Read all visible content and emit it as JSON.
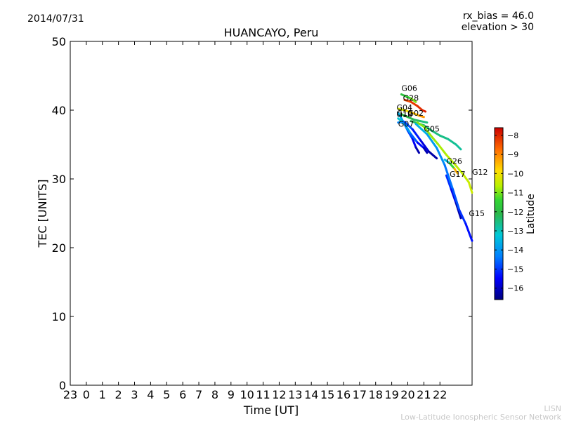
{
  "header": {
    "date": "2014/07/31",
    "rx_bias": "rx_bias = 46.0",
    "elevation": "elevation > 30"
  },
  "watermark": {
    "line1": "LISN",
    "line2": "Low-Latitude Ionospheric Sensor Network"
  },
  "chart_data": {
    "type": "scatter",
    "title": "HUANCAYO, Peru",
    "xlabel": "Time [UT]",
    "ylabel": "TEC [UNITS]",
    "xlim": [
      -1,
      24
    ],
    "ylim": [
      0,
      50
    ],
    "x_ticks": [
      {
        "v": -1,
        "label": "23"
      },
      {
        "v": 0,
        "label": "0"
      },
      {
        "v": 1,
        "label": "1"
      },
      {
        "v": 2,
        "label": "2"
      },
      {
        "v": 3,
        "label": "3"
      },
      {
        "v": 4,
        "label": "4"
      },
      {
        "v": 5,
        "label": "5"
      },
      {
        "v": 6,
        "label": "6"
      },
      {
        "v": 7,
        "label": "7"
      },
      {
        "v": 8,
        "label": "8"
      },
      {
        "v": 9,
        "label": "9"
      },
      {
        "v": 10,
        "label": "10"
      },
      {
        "v": 11,
        "label": "11"
      },
      {
        "v": 12,
        "label": "12"
      },
      {
        "v": 13,
        "label": "13"
      },
      {
        "v": 14,
        "label": "14"
      },
      {
        "v": 15,
        "label": "15"
      },
      {
        "v": 16,
        "label": "16"
      },
      {
        "v": 17,
        "label": "17"
      },
      {
        "v": 18,
        "label": "18"
      },
      {
        "v": 19,
        "label": "19"
      },
      {
        "v": 20,
        "label": "20"
      },
      {
        "v": 21,
        "label": "21"
      },
      {
        "v": 22,
        "label": "22"
      }
    ],
    "y_ticks": [
      0,
      10,
      20,
      30,
      40,
      50
    ],
    "colorbar": {
      "label": "Latitude",
      "range": [
        -16.6,
        -7.6
      ],
      "ticks": [
        -8,
        -9,
        -10,
        -11,
        -12,
        -13,
        -14,
        -15,
        -16
      ]
    },
    "series": [
      {
        "name": "G06",
        "lat_start": -12.0,
        "lat_end": -10.8,
        "points": [
          [
            19.6,
            42.3
          ],
          [
            19.9,
            42.0
          ],
          [
            20.2,
            41.7
          ],
          [
            20.5,
            41.2
          ]
        ]
      },
      {
        "name": "G28",
        "lat_start": -8.4,
        "lat_end": -7.9,
        "points": [
          [
            19.8,
            41.5
          ],
          [
            20.2,
            41.2
          ],
          [
            20.6,
            40.6
          ],
          [
            20.9,
            40.0
          ],
          [
            21.1,
            39.8
          ]
        ]
      },
      {
        "name": "G04",
        "lat_start": -10.5,
        "lat_end": -9.0,
        "points": [
          [
            19.4,
            40.2
          ],
          [
            19.8,
            40.0
          ],
          [
            20.3,
            39.6
          ],
          [
            20.7,
            39.2
          ],
          [
            21.0,
            39.0
          ]
        ]
      },
      {
        "name": "G02",
        "lat_start": -11.8,
        "lat_end": -12.6,
        "points": [
          [
            19.6,
            39.4
          ],
          [
            20.0,
            39.0
          ],
          [
            20.4,
            38.6
          ],
          [
            20.8,
            38.4
          ],
          [
            21.2,
            38.2
          ]
        ]
      },
      {
        "name": "G10",
        "lat_start": -13.4,
        "lat_end": -16.5,
        "points": [
          [
            19.4,
            39.6
          ],
          [
            19.7,
            38.4
          ],
          [
            20.0,
            37.0
          ],
          [
            20.3,
            35.8
          ],
          [
            20.5,
            34.6
          ],
          [
            20.7,
            33.8
          ]
        ]
      },
      {
        "name": "G18",
        "lat_start": -12.8,
        "lat_end": -16.5,
        "points": [
          [
            19.4,
            38.8
          ],
          [
            19.8,
            38.0
          ],
          [
            20.2,
            36.5
          ],
          [
            20.6,
            35.3
          ],
          [
            21.0,
            34.5
          ],
          [
            21.2,
            33.8
          ]
        ]
      },
      {
        "name": "G07",
        "lat_start": -14.0,
        "lat_end": -16.5,
        "points": [
          [
            19.4,
            38.2
          ],
          [
            19.8,
            38.3
          ],
          [
            20.3,
            37.2
          ],
          [
            20.8,
            35.6
          ],
          [
            21.3,
            34.0
          ],
          [
            21.8,
            33.0
          ]
        ]
      },
      {
        "name": "G05",
        "lat_start": -12.2,
        "lat_end": -12.8,
        "points": [
          [
            20.2,
            38.4
          ],
          [
            20.6,
            38.1
          ],
          [
            21.0,
            37.8
          ],
          [
            21.5,
            37.0
          ],
          [
            22.0,
            36.3
          ],
          [
            22.5,
            35.8
          ],
          [
            23.0,
            35.0
          ],
          [
            23.3,
            34.3
          ]
        ]
      },
      {
        "name": "G12",
        "lat_start": -11.0,
        "lat_end": -10.4,
        "points": [
          [
            20.6,
            38.2
          ],
          [
            21.0,
            37.6
          ],
          [
            21.4,
            36.4
          ],
          [
            21.9,
            35.0
          ],
          [
            22.4,
            33.5
          ],
          [
            22.9,
            32.2
          ],
          [
            23.4,
            30.8
          ],
          [
            23.8,
            29.5
          ],
          [
            24.0,
            28.0
          ]
        ]
      },
      {
        "name": "G26",
        "lat_start": -14.4,
        "lat_end": -8.4,
        "points": [
          [
            22.3,
            32.8
          ],
          [
            22.6,
            32.3
          ],
          [
            22.9,
            31.5
          ],
          [
            23.1,
            30.8
          ]
        ]
      },
      {
        "name": "G17",
        "lat_start": -14.8,
        "lat_end": -16.5,
        "points": [
          [
            22.4,
            30.5
          ],
          [
            22.7,
            28.5
          ],
          [
            23.0,
            26.5
          ],
          [
            23.3,
            24.3
          ]
        ]
      },
      {
        "name": "G15",
        "lat_start": -13.4,
        "lat_end": -15.5,
        "points": [
          [
            20.5,
            38.0
          ],
          [
            21.2,
            36.5
          ],
          [
            21.8,
            34.5
          ],
          [
            22.3,
            32.0
          ],
          [
            22.8,
            28.5
          ],
          [
            23.2,
            25.5
          ],
          [
            23.6,
            23.5
          ],
          [
            24.0,
            21.0
          ]
        ]
      }
    ],
    "labels": [
      {
        "text": "G06",
        "x": 19.6,
        "y": 42.8
      },
      {
        "text": "G28",
        "x": 19.7,
        "y": 41.4
      },
      {
        "text": "G04",
        "x": 19.3,
        "y": 40.0
      },
      {
        "text": "G10",
        "x": 19.3,
        "y": 39.2
      },
      {
        "text": "G18",
        "x": 19.3,
        "y": 39.0
      },
      {
        "text": "G02",
        "x": 20.0,
        "y": 39.2
      },
      {
        "text": "G07",
        "x": 19.4,
        "y": 37.6
      },
      {
        "text": "G05",
        "x": 21.0,
        "y": 36.9
      },
      {
        "text": "G26",
        "x": 22.4,
        "y": 32.2
      },
      {
        "text": "G17",
        "x": 22.6,
        "y": 30.3
      },
      {
        "text": "G12",
        "x": 24.0,
        "y": 30.6
      },
      {
        "text": "G15",
        "x": 23.8,
        "y": 24.6
      }
    ]
  }
}
